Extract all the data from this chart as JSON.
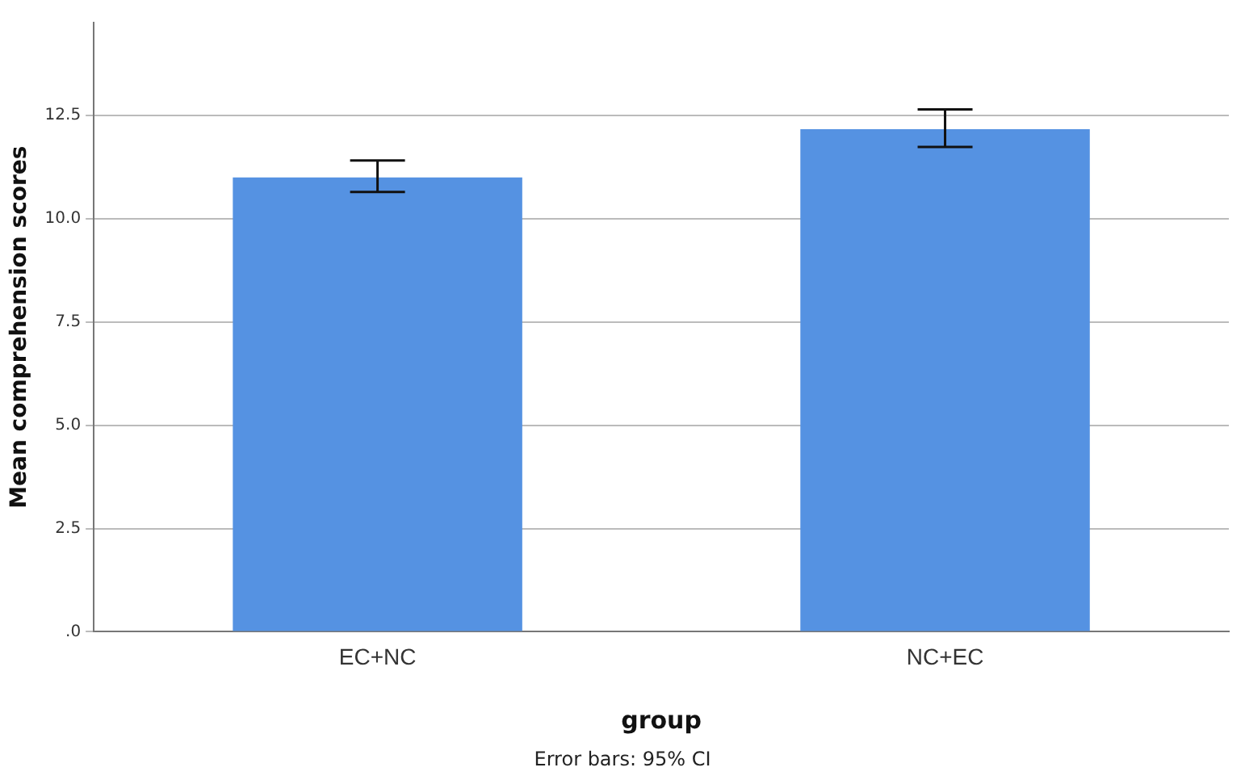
{
  "chart_data": {
    "type": "bar",
    "xlabel": "group",
    "ylabel": "Mean comprehension scores",
    "categories": [
      "EC+NC",
      "NC+EC"
    ],
    "values": [
      11.0,
      12.17
    ],
    "errors": [
      [
        10.65,
        11.41
      ],
      [
        11.74,
        12.65
      ]
    ],
    "color": "#5592e2",
    "ylim": [
      0,
      14.75
    ],
    "yticks": [
      {
        "value": 0,
        "label": ".0"
      },
      {
        "value": 2.5,
        "label": "2.5"
      },
      {
        "value": 5,
        "label": "5.0"
      },
      {
        "value": 7.5,
        "label": "7.5"
      },
      {
        "value": 10,
        "label": "10.0"
      },
      {
        "value": 12.5,
        "label": "12.5"
      }
    ],
    "grid": "y",
    "legend": false,
    "annotations": [
      "Error bars: 95% CI"
    ]
  }
}
